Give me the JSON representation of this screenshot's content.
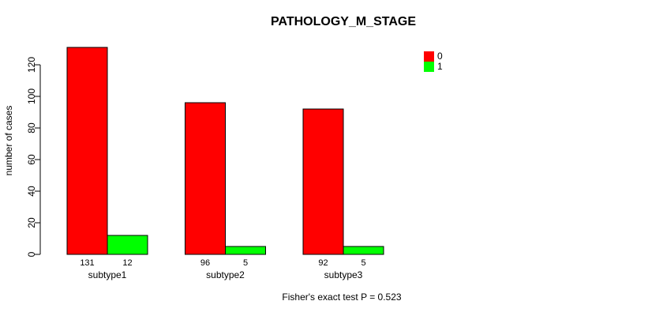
{
  "chart_data": {
    "type": "bar",
    "title": "PATHOLOGY_M_STAGE",
    "xlabel": "",
    "ylabel": "number of cases",
    "categories": [
      "subtype1",
      "subtype2",
      "subtype3"
    ],
    "series": [
      {
        "name": "0",
        "color": "#ff0000",
        "values": [
          131,
          96,
          92
        ]
      },
      {
        "name": "1",
        "color": "#00ff00",
        "values": [
          12,
          5,
          5
        ]
      }
    ],
    "yticks": [
      0,
      20,
      40,
      60,
      80,
      100,
      120
    ],
    "ylim": [
      0,
      131
    ],
    "grid": false,
    "legend_position": "top-right",
    "bar_value_labels": true,
    "annotation": "Fisher's exact test P = 0.523"
  }
}
